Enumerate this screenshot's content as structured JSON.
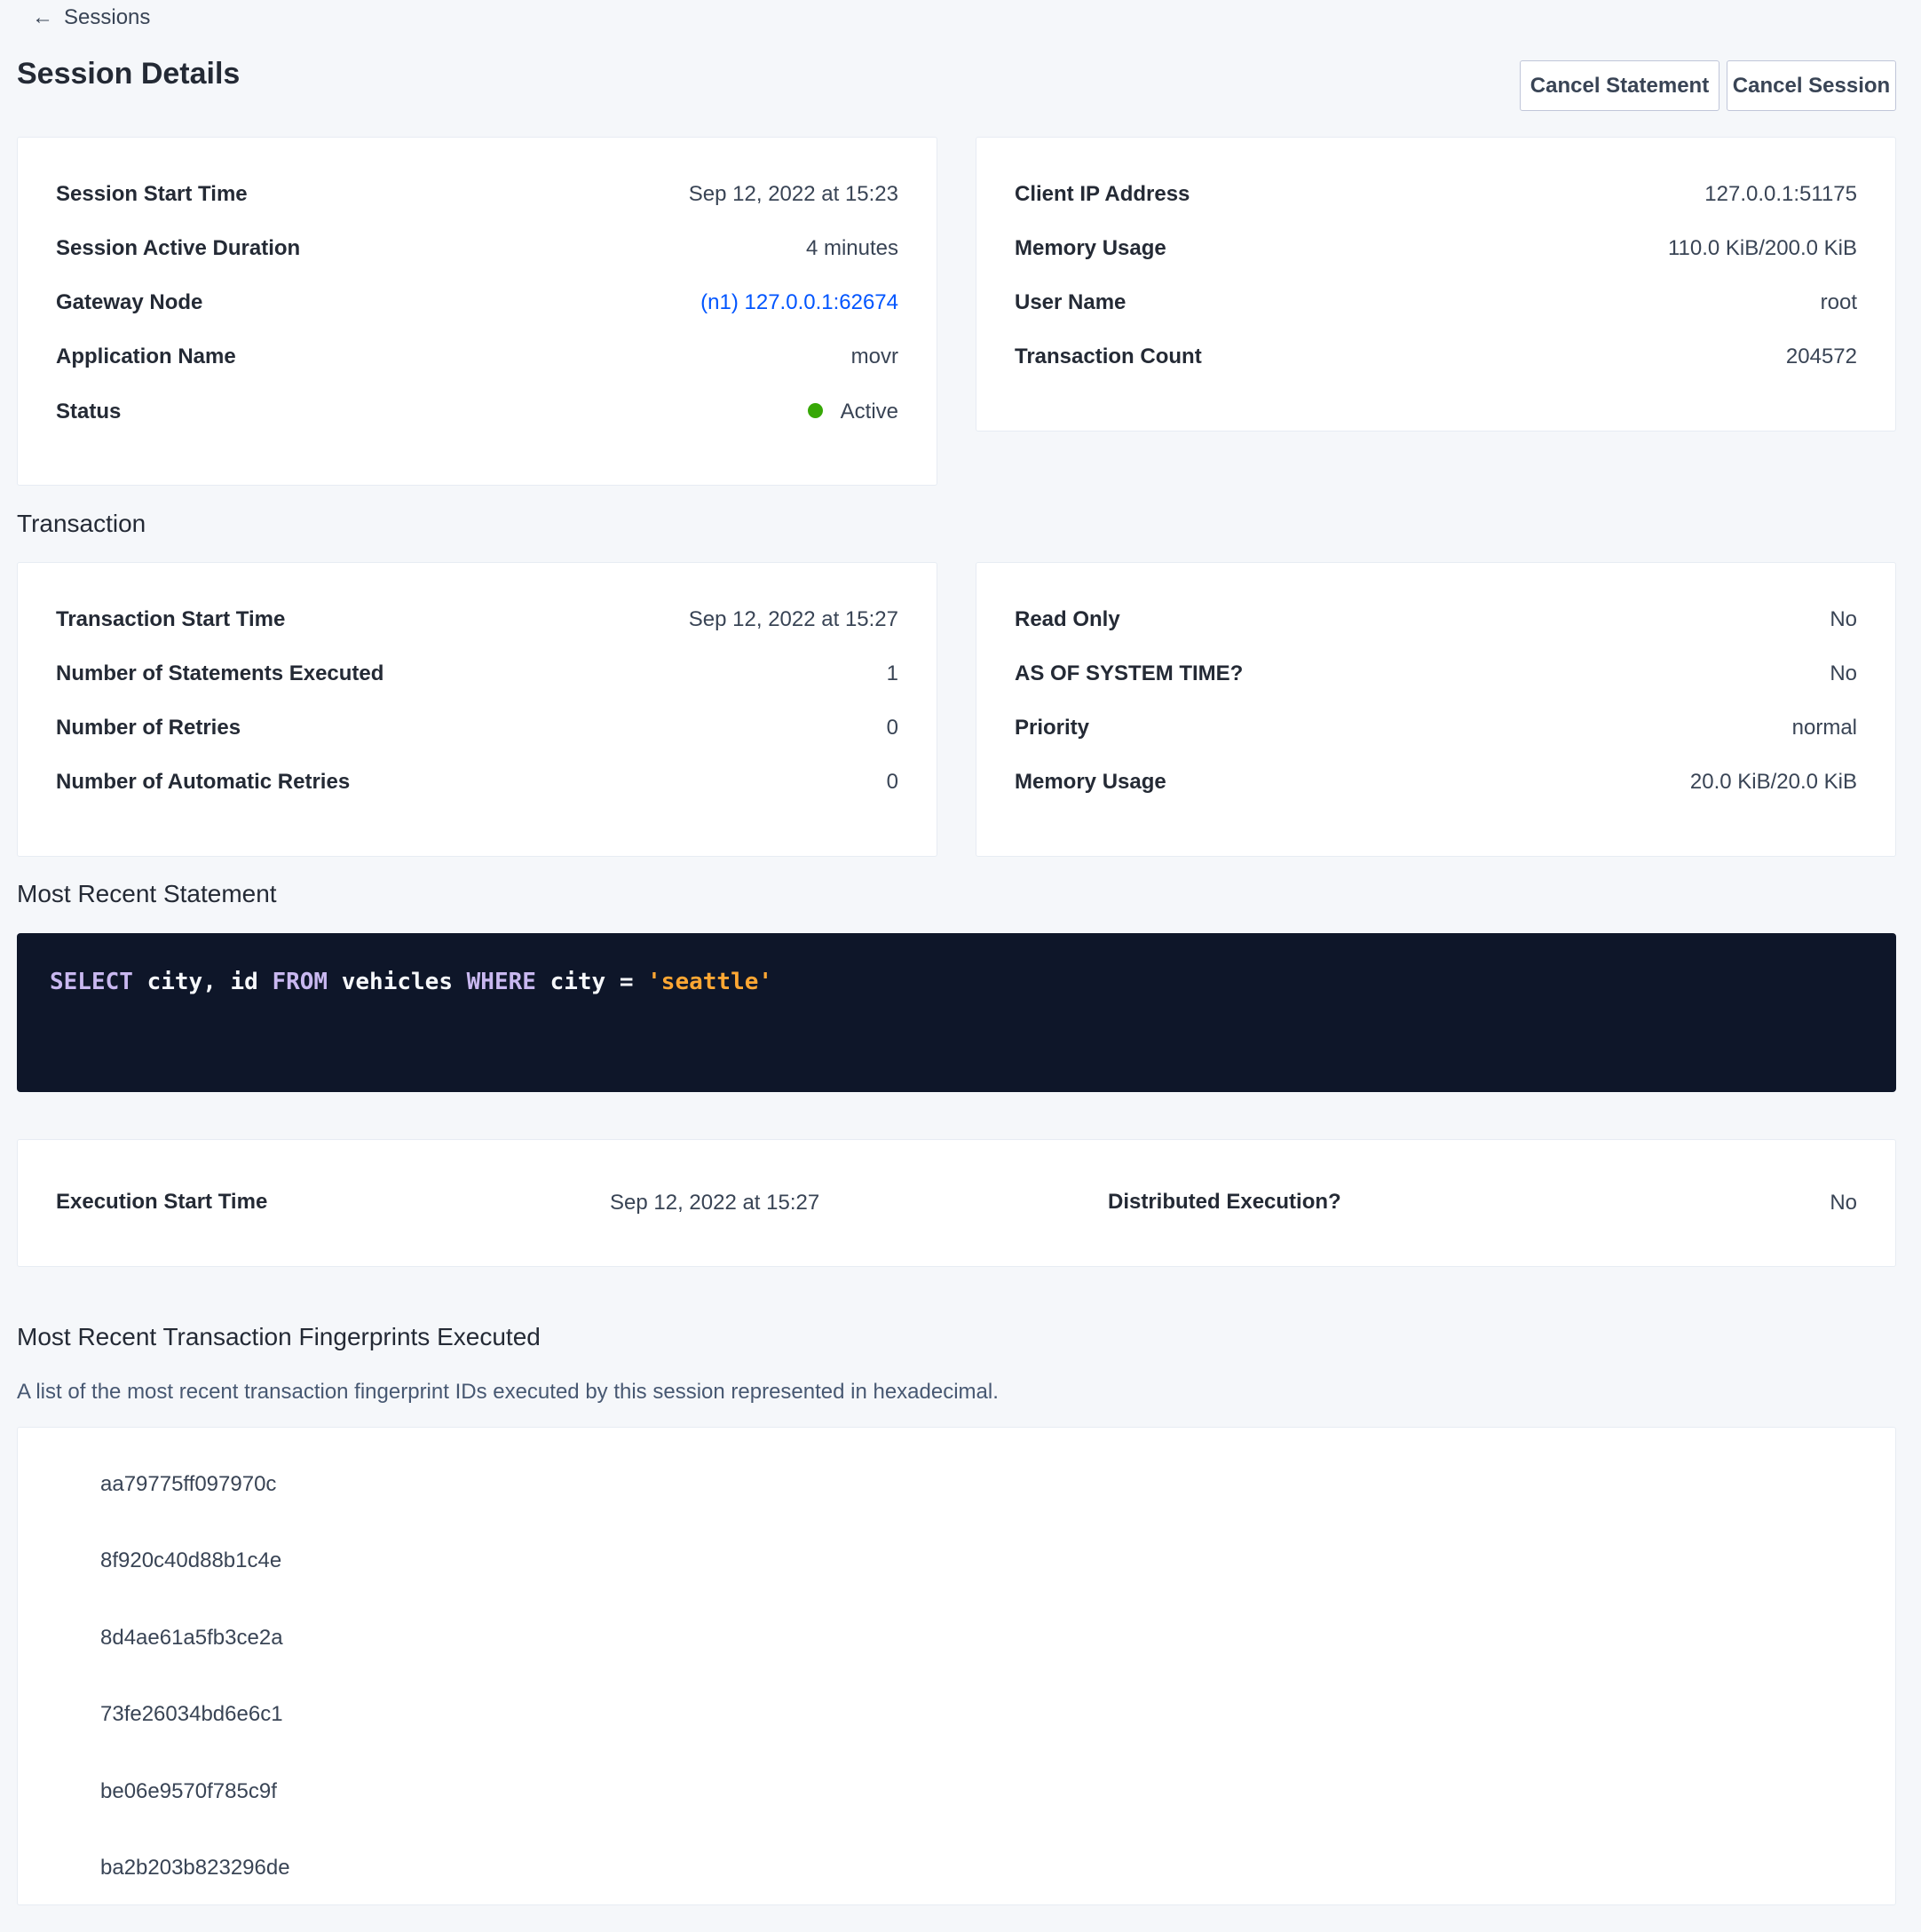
{
  "nav": {
    "back_label": "Sessions",
    "back_icon": "arrow-left-icon"
  },
  "header": {
    "title": "Session Details",
    "cancel_statement": "Cancel Statement",
    "cancel_session": "Cancel Session"
  },
  "session_left": [
    {
      "label": "Session Start Time",
      "value": "Sep 12, 2022 at 15:23"
    },
    {
      "label": "Session Active Duration",
      "value": "4 minutes"
    },
    {
      "label": "Gateway Node",
      "value": "(n1) 127.0.0.1:62674"
    },
    {
      "label": "Application Name",
      "value": "movr"
    },
    {
      "label": "Status",
      "value": "Active"
    }
  ],
  "session_right": [
    {
      "label": "Client IP Address",
      "value": "127.0.0.1:51175"
    },
    {
      "label": "Memory Usage",
      "value": "110.0 KiB/200.0 KiB"
    },
    {
      "label": "User Name",
      "value": "root"
    },
    {
      "label": "Transaction Count",
      "value": "204572"
    }
  ],
  "transaction": {
    "heading": "Transaction",
    "left": [
      {
        "label": "Transaction Start Time",
        "value": "Sep 12, 2022 at 15:27"
      },
      {
        "label": "Number of Statements Executed",
        "value": "1"
      },
      {
        "label": "Number of Retries",
        "value": "0"
      },
      {
        "label": "Number of Automatic Retries",
        "value": "0"
      }
    ],
    "right": [
      {
        "label": "Read Only",
        "value": "No"
      },
      {
        "label": "AS OF SYSTEM TIME?",
        "value": "No"
      },
      {
        "label": "Priority",
        "value": "normal"
      },
      {
        "label": "Memory Usage",
        "value": "20.0 KiB/20.0 KiB"
      }
    ]
  },
  "statement": {
    "heading": "Most Recent Statement",
    "tokens": {
      "k1": "SELECT",
      "t1": " city, id ",
      "k2": "FROM",
      "t2": " vehicles ",
      "k3": "WHERE",
      "t3": " city = ",
      "s1": "'seattle'"
    },
    "exec_start_label": "Execution Start Time",
    "exec_start_value": "Sep 12, 2022 at 15:27",
    "distributed_label": "Distributed Execution?",
    "distributed_value": "No"
  },
  "fingerprints": {
    "heading": "Most Recent Transaction Fingerprints Executed",
    "description": "A list of the most recent transaction fingerprint IDs executed by this session represented in hexadecimal.",
    "items": [
      "aa79775ff097970c",
      "8f920c40d88b1c4e",
      "8d4ae61a5fb3ce2a",
      "73fe26034bd6e6c1",
      "be06e9570f785c9f",
      "ba2b203b823296de"
    ]
  },
  "colors": {
    "link": "#0055ff",
    "status_active": "#37a806",
    "code_bg": "#0e1629",
    "keyword": "#c9b8f0",
    "string": "#ffa733"
  }
}
